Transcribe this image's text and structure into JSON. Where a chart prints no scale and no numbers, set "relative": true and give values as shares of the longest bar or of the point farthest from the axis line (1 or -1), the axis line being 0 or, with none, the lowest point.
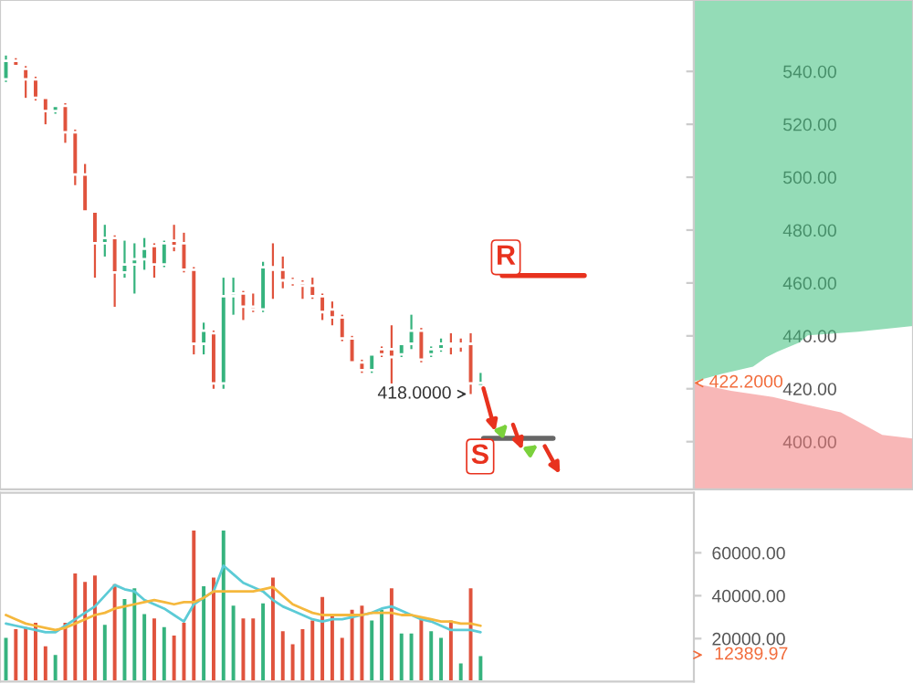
{
  "chart_data": [
    {
      "type": "candlestick",
      "categories": [
        null,
        null,
        null,
        null,
        null,
        null,
        null,
        null,
        null,
        null,
        null,
        null,
        null,
        null,
        null,
        null,
        null,
        null,
        null,
        null,
        null,
        null,
        null,
        null,
        null,
        null,
        null,
        null,
        null,
        null,
        null,
        null,
        null,
        null,
        null,
        null,
        null,
        null,
        null,
        null,
        null,
        null,
        null,
        null,
        null,
        null,
        null,
        null,
        null
      ],
      "ohlc": [
        [
          537,
          546,
          536,
          544
        ],
        [
          544,
          545,
          542,
          542
        ],
        [
          541,
          542,
          530,
          537
        ],
        [
          537,
          538,
          529,
          530
        ],
        [
          530,
          530,
          520,
          525
        ],
        [
          525,
          527,
          524,
          527
        ],
        [
          527,
          528,
          513,
          517
        ],
        [
          517,
          518,
          497,
          501
        ],
        [
          501,
          505,
          487,
          487
        ],
        [
          487,
          487,
          462,
          475
        ],
        [
          475,
          482,
          470,
          477
        ],
        [
          477,
          478,
          451,
          464
        ],
        [
          464,
          476,
          462,
          467
        ],
        [
          467,
          475,
          456,
          469
        ],
        [
          469,
          477,
          465,
          473
        ],
        [
          474,
          475,
          462,
          467
        ],
        [
          467,
          476,
          466,
          475
        ],
        [
          476,
          482,
          472,
          474
        ],
        [
          475,
          479,
          464,
          465
        ],
        [
          465,
          466,
          433,
          437
        ],
        [
          437,
          445,
          433,
          442
        ],
        [
          441,
          442,
          420,
          422
        ],
        [
          422,
          462,
          420,
          455
        ],
        [
          455,
          462,
          448,
          456
        ],
        [
          456,
          457,
          446,
          451
        ],
        [
          451,
          456,
          449,
          450
        ],
        [
          450,
          468,
          449,
          466
        ],
        [
          466,
          475,
          454,
          465
        ],
        [
          465,
          470,
          458,
          461
        ],
        [
          461,
          462,
          459,
          460
        ],
        [
          460,
          461,
          454,
          459
        ],
        [
          459,
          462,
          454,
          455
        ],
        [
          455,
          456,
          446,
          449
        ],
        [
          450,
          453,
          444,
          447
        ],
        [
          447,
          448,
          438,
          439
        ],
        [
          439,
          440,
          430,
          430
        ],
        [
          430,
          431,
          426,
          427
        ],
        [
          427,
          433,
          426,
          433
        ],
        [
          435,
          436,
          432,
          433
        ],
        [
          435,
          444,
          422,
          432
        ],
        [
          433,
          437,
          432,
          437
        ],
        [
          437,
          448,
          435,
          442
        ],
        [
          442,
          443,
          430,
          431
        ],
        [
          433,
          436,
          432,
          435
        ],
        [
          435,
          439,
          434,
          437
        ],
        [
          437,
          441,
          433,
          436
        ],
        [
          437,
          439,
          434,
          436
        ],
        [
          437,
          441,
          418,
          422
        ],
        [
          421,
          426,
          421,
          422.2
        ]
      ],
      "colors": [
        "#36b37e",
        "#e0533d",
        "#e0533d",
        "#e0533d",
        "#e0533d",
        "#36b37e",
        "#e0533d",
        "#e0533d",
        "#e0533d",
        "#e0533d",
        "#36b37e",
        "#e0533d",
        "#36b37e",
        "#36b37e",
        "#36b37e",
        "#e0533d",
        "#36b37e",
        "#e0533d",
        "#e0533d",
        "#e0533d",
        "#36b37e",
        "#e0533d",
        "#36b37e",
        "#36b37e",
        "#e0533d",
        "#e0533d",
        "#36b37e",
        "#e0533d",
        "#e0533d",
        "#e0533d",
        "#e0533d",
        "#e0533d",
        "#e0533d",
        "#e0533d",
        "#e0533d",
        "#e0533d",
        "#e0533d",
        "#36b37e",
        "#e0533d",
        "#e0533d",
        "#36b37e",
        "#36b37e",
        "#e0533d",
        "#36b37e",
        "#36b37e",
        "#e0533d",
        "#e0533d",
        "#e0533d",
        "#36b37e"
      ],
      "ylim": [
        382,
        567
      ],
      "tick_labels": false,
      "annotations": [
        "418.0000",
        "R",
        "S"
      ]
    },
    {
      "type": "bar",
      "categories": [
        null,
        null,
        null,
        null,
        null,
        null,
        null,
        null,
        null,
        null,
        null,
        null,
        null,
        null,
        null,
        null,
        null,
        null,
        null,
        null,
        null,
        null,
        null,
        null,
        null,
        null,
        null,
        null,
        null,
        null,
        null,
        null,
        null,
        null,
        null,
        null,
        null,
        null,
        null,
        null,
        null,
        null,
        null,
        null,
        null,
        null,
        null,
        null,
        null
      ],
      "series": [
        {
          "type": "bar",
          "values": [
            21000,
            25000,
            26000,
            28000,
            17000,
            13000,
            28000,
            51000,
            47000,
            50000,
            27000,
            46000,
            39000,
            44000,
            32000,
            30000,
            26000,
            22000,
            28000,
            71000,
            45000,
            49000,
            71000,
            36000,
            30000,
            30000,
            37000,
            49000,
            24000,
            18000,
            25000,
            29000,
            40000,
            31000,
            21000,
            34000,
            36000,
            29000,
            34000,
            44000,
            23000,
            23000,
            30000,
            24000,
            21000,
            29000,
            9000,
            44000,
            12389.97
          ],
          "colors": [
            "#36b37e",
            "#e0533d",
            "#e0533d",
            "#e0533d",
            "#e0533d",
            "#36b37e",
            "#e0533d",
            "#e0533d",
            "#e0533d",
            "#e0533d",
            "#36b37e",
            "#e0533d",
            "#36b37e",
            "#36b37e",
            "#36b37e",
            "#e0533d",
            "#36b37e",
            "#e0533d",
            "#e0533d",
            "#e0533d",
            "#36b37e",
            "#e0533d",
            "#36b37e",
            "#36b37e",
            "#e0533d",
            "#e0533d",
            "#36b37e",
            "#e0533d",
            "#e0533d",
            "#e0533d",
            "#e0533d",
            "#e0533d",
            "#e0533d",
            "#e0533d",
            "#e0533d",
            "#e0533d",
            "#e0533d",
            "#36b37e",
            "#36b37e",
            "#e0533d",
            "#36b37e",
            "#36b37e",
            "#e0533d",
            "#36b37e",
            "#36b37e",
            "#e0533d",
            "#36b37e",
            "#e0533d",
            "#36b37e"
          ]
        },
        {
          "type": "line",
          "color": "#5ccbd6",
          "values": [
            27000,
            26000,
            25000,
            24000,
            23000,
            23000,
            26000,
            29000,
            32000,
            35000,
            40000,
            45000,
            43000,
            42000,
            38000,
            36000,
            34000,
            31000,
            28000,
            36000,
            39000,
            42000,
            54000,
            50000,
            46000,
            44000,
            42000,
            38000,
            35000,
            33000,
            31000,
            29000,
            28000,
            29000,
            29000,
            30000,
            31000,
            32000,
            34000,
            35000,
            33000,
            31000,
            29000,
            28000,
            26000,
            24000,
            24000,
            24000,
            23000
          ]
        },
        {
          "type": "line",
          "color": "#f5b83d",
          "values": [
            31000,
            29000,
            27000,
            26000,
            25000,
            24000,
            25000,
            27000,
            29000,
            31000,
            32000,
            34000,
            35000,
            36000,
            37000,
            38000,
            37000,
            36000,
            37000,
            37000,
            39000,
            42000,
            42000,
            42000,
            42000,
            42000,
            43000,
            44000,
            40000,
            36000,
            34000,
            32000,
            31000,
            31000,
            31000,
            31000,
            31000,
            32000,
            32000,
            32000,
            31000,
            31000,
            30000,
            29000,
            28000,
            28000,
            27000,
            27000,
            26000
          ]
        }
      ],
      "ylim": [
        0,
        88000
      ],
      "yticks": [
        {
          "value": 20000,
          "label": "20000.00"
        },
        {
          "value": 40000,
          "label": "40000.00"
        },
        {
          "value": 60000,
          "label": "60000.00"
        }
      ],
      "tick_labels": "y",
      "annotations": [
        "12389.97"
      ]
    },
    {
      "type": "area",
      "orientation": "horizontal",
      "relative": true,
      "series": [
        {
          "color": "#3cbf7c",
          "x": [
            422.7,
            425.7,
            428.4,
            431.9,
            434,
            437.4,
            440.2,
            441.6,
            443.7,
            567
          ],
          "values": [
            0,
            0.13,
            0.27,
            0.33,
            0.38,
            0.48,
            0.52,
            0.75,
            1,
            1
          ]
        },
        {
          "color": "#f27b7b",
          "x": [
            422,
            419.2,
            416.9,
            414.6,
            411.1,
            407.6,
            402.6,
            401.2,
            382
          ],
          "values": [
            0,
            0.17,
            0.36,
            0.48,
            0.67,
            0.75,
            0.86,
            1,
            1
          ]
        }
      ],
      "ylim": [
        382,
        567
      ],
      "yticks": [
        {
          "value": 400,
          "label": "400.00"
        },
        {
          "value": 420,
          "label": "420.00"
        },
        {
          "value": 440,
          "label": "440.00"
        },
        {
          "value": 460,
          "label": "460.00"
        },
        {
          "value": 480,
          "label": "480.00"
        },
        {
          "value": 500,
          "label": "500.00"
        },
        {
          "value": 520,
          "label": "520.00"
        },
        {
          "value": 540,
          "label": "540.00"
        }
      ],
      "tick_labels": "y",
      "annotations": [
        "422.2000"
      ]
    }
  ]
}
